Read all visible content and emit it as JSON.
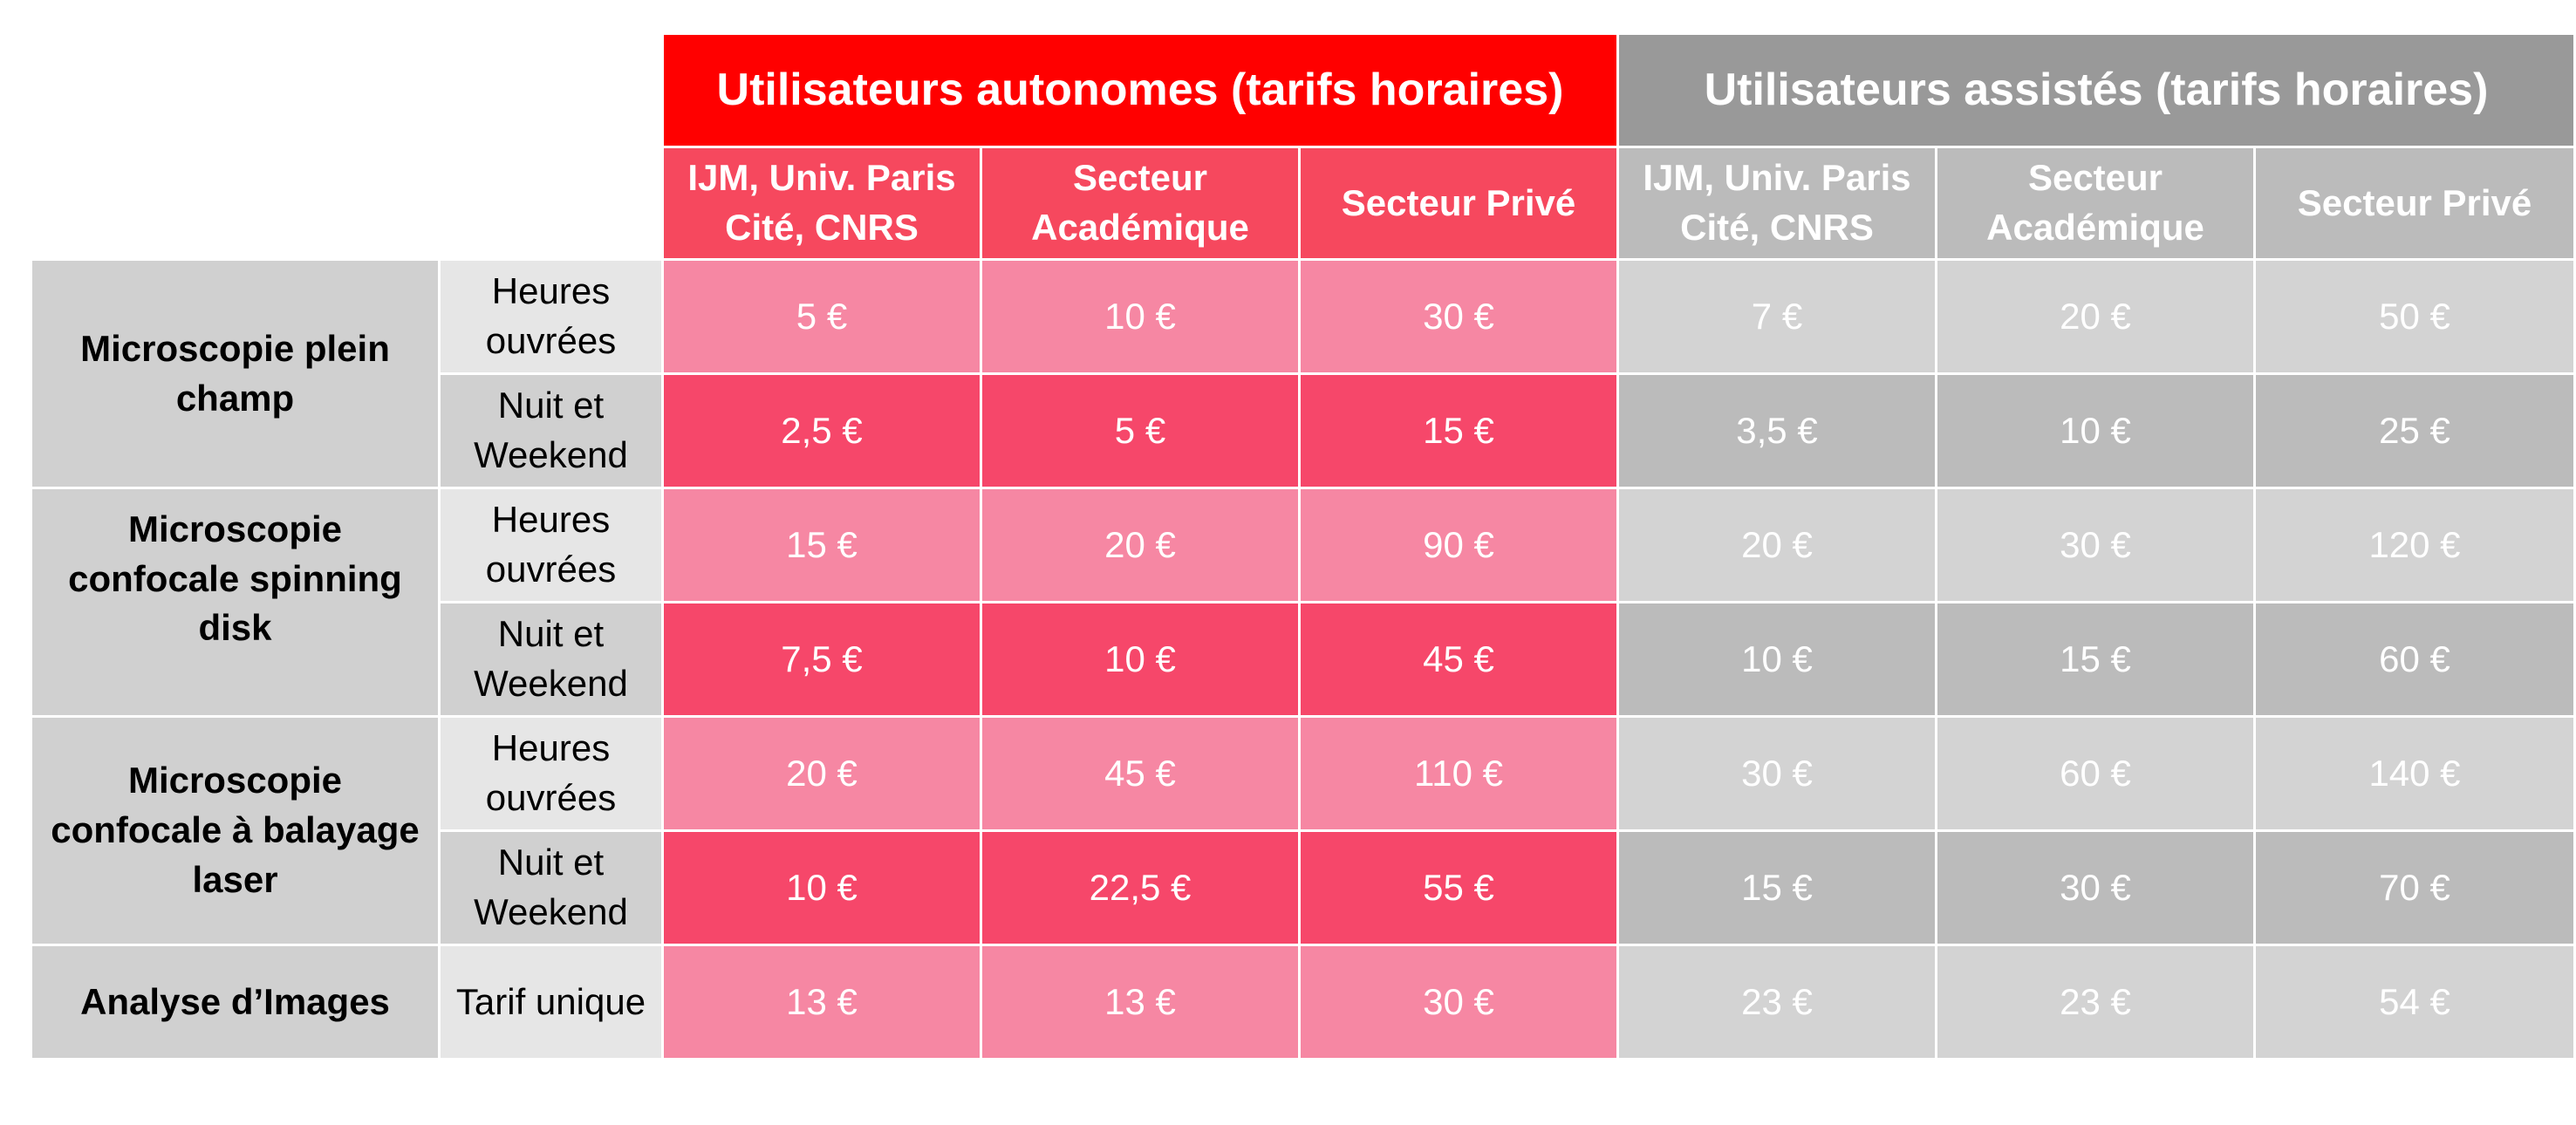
{
  "header": {
    "autonomous": "Utilisateurs autonomes (tarifs horaires)",
    "assisted": "Utilisateurs assistés (tarifs horaires)"
  },
  "columns": [
    "IJM, Univ. Paris Cité, CNRS",
    "Secteur Académique",
    "Secteur Privé"
  ],
  "colors": {
    "red": "#ff0000",
    "gray": "#999999",
    "pink_light": "#f687a3",
    "pink_dark": "#f6476a"
  },
  "services": [
    {
      "name": "Microscopie plein champ",
      "periods": [
        {
          "label": "Heures ouvrées",
          "values": [
            "5 €",
            "10 €",
            "30 €",
            "7 €",
            "20 €",
            "50 €"
          ]
        },
        {
          "label": "Nuit et Weekend",
          "values": [
            "2,5 €",
            "5 €",
            "15  €",
            "3,5 €",
            "10 €",
            "25 €"
          ]
        }
      ]
    },
    {
      "name": "Microscopie confocale spinning disk",
      "periods": [
        {
          "label": "Heures ouvrées",
          "values": [
            "15 €",
            "20 €",
            "90 €",
            "20 €",
            "30 €",
            "120 €"
          ]
        },
        {
          "label": "Nuit et Weekend",
          "values": [
            "7,5 €",
            "10 €",
            "45 €",
            "10 €",
            "15 €",
            "60 €"
          ]
        }
      ]
    },
    {
      "name": "Microscopie confocale à balayage laser",
      "periods": [
        {
          "label": "Heures ouvrées",
          "values": [
            "20 €",
            "45 €",
            "110 €",
            "30 €",
            "60 €",
            "140 €"
          ]
        },
        {
          "label": "Nuit et Weekend",
          "values": [
            "10 €",
            "22,5 €",
            "55 €",
            "15 €",
            "30 €",
            "70 €"
          ]
        }
      ]
    },
    {
      "name": "Analyse d’Images",
      "periods": [
        {
          "label": "Tarif unique",
          "values": [
            "13 €",
            "13 €",
            "30 €",
            "23 €",
            "23 €",
            "54 €"
          ]
        }
      ]
    }
  ]
}
